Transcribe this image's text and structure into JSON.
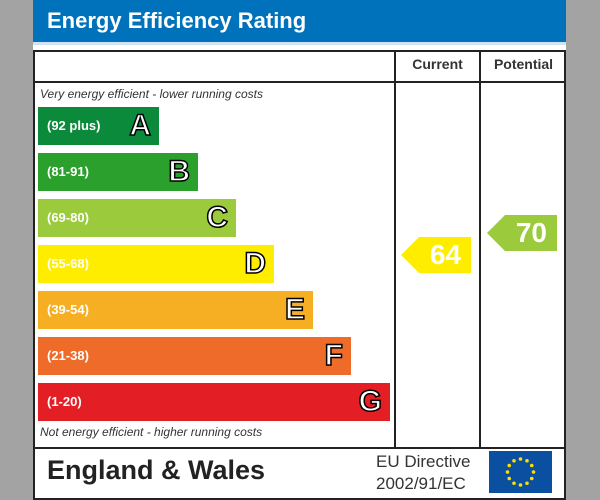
{
  "header": {
    "title": "Energy Efficiency Rating"
  },
  "columns": {
    "current": "Current",
    "potential": "Potential"
  },
  "notes": {
    "top": "Very energy efficient - lower running costs",
    "bottom": "Not energy efficient - higher running costs"
  },
  "footer": {
    "country": "England & Wales",
    "directive_line1": "EU Directive",
    "directive_line2": "2002/91/EC"
  },
  "chart_data": {
    "type": "bar",
    "bands": [
      {
        "letter": "A",
        "range": "(92 plus)",
        "color": "#0c8a3c"
      },
      {
        "letter": "B",
        "range": "(81-91)",
        "color": "#2ca02d"
      },
      {
        "letter": "C",
        "range": "(69-80)",
        "color": "#9bca3d"
      },
      {
        "letter": "D",
        "range": "(55-68)",
        "color": "#ffed00"
      },
      {
        "letter": "E",
        "range": "(39-54)",
        "color": "#f6ae23"
      },
      {
        "letter": "F",
        "range": "(21-38)",
        "color": "#ee6b2a"
      },
      {
        "letter": "G",
        "range": "(1-20)",
        "color": "#e31e25"
      }
    ],
    "current": {
      "value": "64",
      "band": "D",
      "color": "#ffed00"
    },
    "potential": {
      "value": "70",
      "band": "C",
      "color": "#9bca3d"
    }
  }
}
